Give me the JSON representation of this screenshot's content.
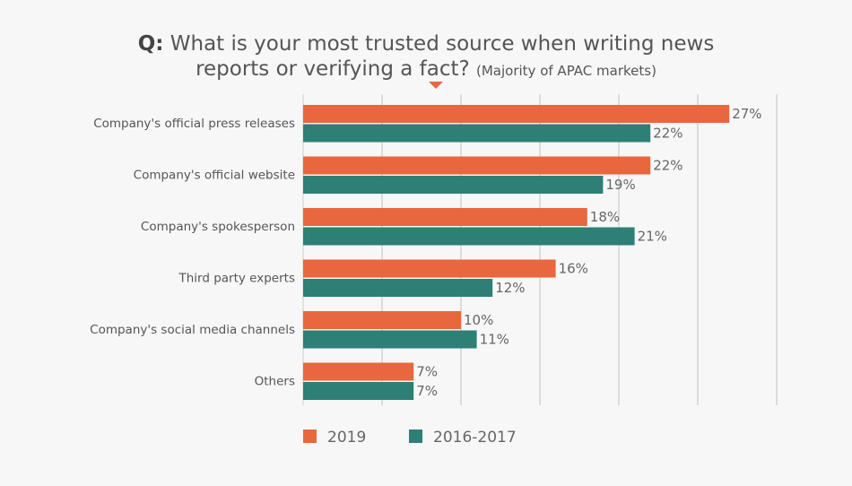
{
  "chart_data": {
    "type": "bar",
    "orientation": "horizontal",
    "title_prefix": "Q:",
    "title_line1": "What is your most trusted source when writing news",
    "title_line2": "reports or verifying a fact?",
    "subtitle": "(Majority of APAC markets)",
    "categories": [
      "Company's official press releases",
      "Company's official website",
      "Company's spokesperson",
      "Third party experts",
      "Company's social media channels",
      "Others"
    ],
    "series": [
      {
        "name": "2019",
        "color": "#e8673f",
        "values": [
          27,
          22,
          18,
          16,
          10,
          7
        ]
      },
      {
        "name": "2016-2017",
        "color": "#2e7f76",
        "values": [
          22,
          19,
          21,
          12,
          11,
          7
        ]
      }
    ],
    "value_suffix": "%",
    "xlim": [
      0,
      30
    ],
    "grid": true,
    "legend": "bottom-left"
  }
}
